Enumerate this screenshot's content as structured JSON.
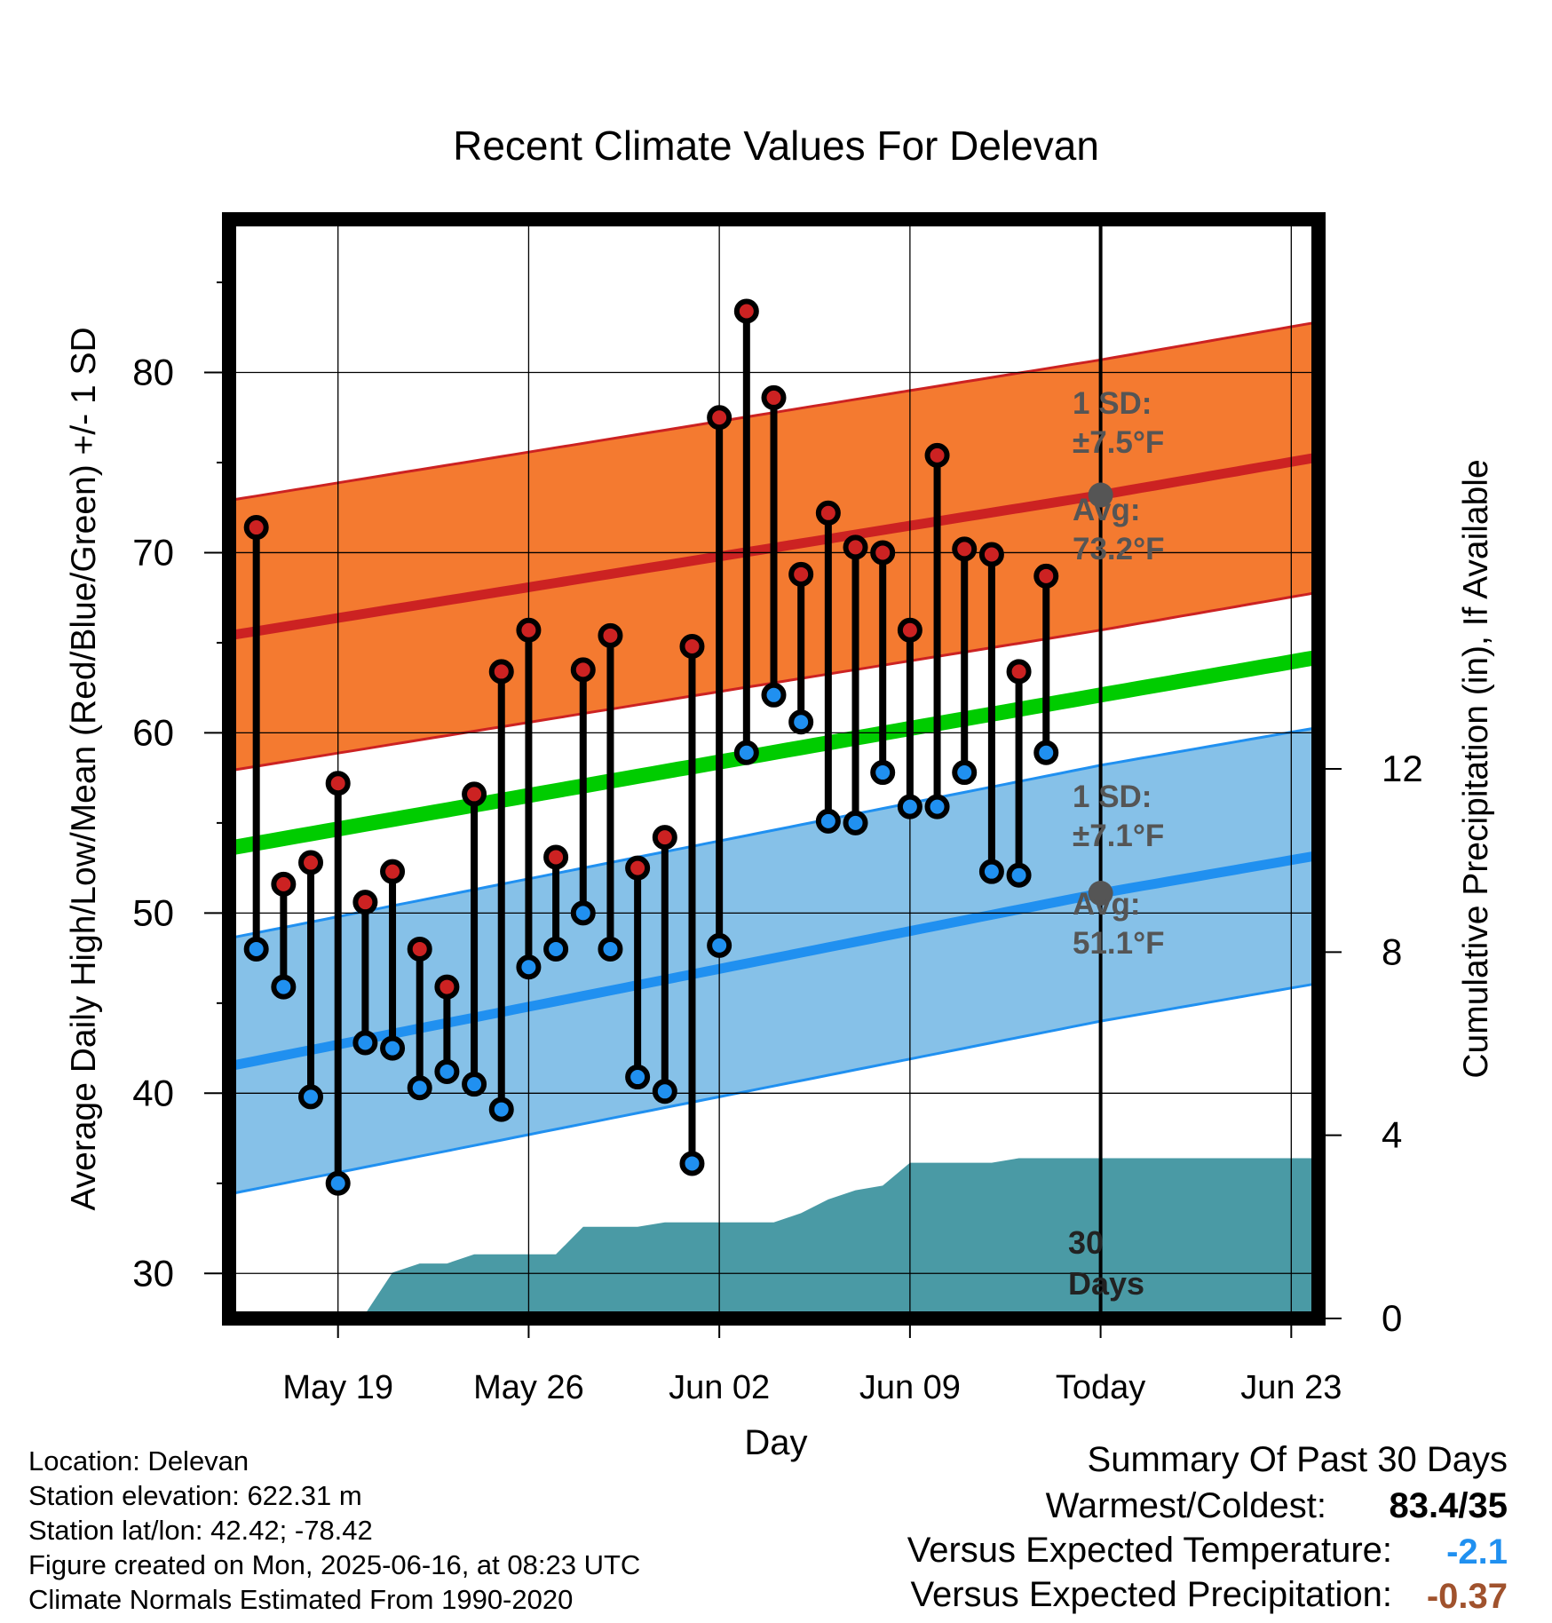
{
  "title": "Recent Climate Values For Delevan",
  "chart_data": {
    "type": "line",
    "title": "Recent Climate Values For Delevan",
    "xlabel": "Day",
    "ylabel": "Average Daily High/Low/Mean (Red/Blue/Green) +/- 1 SD",
    "y2label": "Cumulative Precipitation (in), If Available",
    "x_ticks": [
      "May 19",
      "May 26",
      "Jun 02",
      "Jun 09",
      "Today",
      "Jun 23"
    ],
    "y_ticks": [
      "30",
      "40",
      "50",
      "60",
      "70",
      "80"
    ],
    "y2_ticks": [
      "0",
      "4",
      "8",
      "12"
    ],
    "ylim": [
      27.5,
      88.5
    ],
    "y2lim": [
      0,
      24
    ],
    "xlim": [
      "2025-05-15",
      "2025-06-24"
    ],
    "grid": true,
    "today": "2025-06-16",
    "days": [
      "2025-05-16",
      "2025-05-17",
      "2025-05-18",
      "2025-05-19",
      "2025-05-20",
      "2025-05-21",
      "2025-05-22",
      "2025-05-23",
      "2025-05-24",
      "2025-05-25",
      "2025-05-26",
      "2025-05-27",
      "2025-05-28",
      "2025-05-29",
      "2025-05-30",
      "2025-05-31",
      "2025-06-01",
      "2025-06-02",
      "2025-06-03",
      "2025-06-04",
      "2025-06-05",
      "2025-06-06",
      "2025-06-07",
      "2025-06-08",
      "2025-06-09",
      "2025-06-10",
      "2025-06-11",
      "2025-06-12",
      "2025-06-13",
      "2025-06-14",
      "2025-06-15"
    ],
    "series": [
      {
        "name": "High",
        "color": "#cc2222",
        "values": [
          71.4,
          51.6,
          52.8,
          57.2,
          50.6,
          52.3,
          48.0,
          45.9,
          56.6,
          63.4,
          65.7,
          53.1,
          63.5,
          65.4,
          52.5,
          54.2,
          64.8,
          77.5,
          83.4,
          78.6,
          68.8,
          72.2,
          70.3,
          70.0,
          65.7,
          75.4,
          70.2,
          69.9,
          63.4,
          68.7,
          null
        ]
      },
      {
        "name": "Low",
        "color": "#2090f0",
        "values": [
          48.0,
          45.9,
          39.8,
          35.0,
          42.8,
          42.5,
          40.3,
          41.2,
          40.5,
          39.1,
          47.0,
          48.0,
          50.0,
          48.0,
          40.9,
          40.1,
          36.1,
          48.2,
          58.9,
          62.1,
          60.6,
          55.1,
          55.0,
          57.8,
          55.9,
          55.9,
          57.8,
          52.3,
          52.1,
          58.9,
          null
        ]
      }
    ],
    "normals": {
      "dates": [
        "2025-05-15",
        "2025-06-16",
        "2025-06-24"
      ],
      "high_avg": [
        65.4,
        73.2,
        75.3
      ],
      "high_sd": 7.5,
      "low_avg": [
        41.5,
        51.1,
        53.2
      ],
      "low_sd": 7.1,
      "mean_avg": [
        53.6,
        62.1,
        64.2
      ],
      "high_color": "#cc2222",
      "high_band_color": "#f47a30",
      "low_color": "#2090f0",
      "low_band_color": "#86c1e8",
      "mean_color": "#00cc00"
    },
    "precipitation": {
      "color": "#4a9aa5",
      "dates": [
        "2025-05-15",
        "2025-05-17",
        "2025-05-18",
        "2025-05-19",
        "2025-05-20",
        "2025-05-21",
        "2025-05-22",
        "2025-05-23",
        "2025-05-24",
        "2025-05-25",
        "2025-05-26",
        "2025-05-27",
        "2025-05-28",
        "2025-05-29",
        "2025-05-30",
        "2025-05-31",
        "2025-06-01",
        "2025-06-02",
        "2025-06-03",
        "2025-06-04",
        "2025-06-05",
        "2025-06-06",
        "2025-06-07",
        "2025-06-08",
        "2025-06-09",
        "2025-06-10",
        "2025-06-11",
        "2025-06-12",
        "2025-06-13",
        "2025-06-14",
        "2025-06-15",
        "2025-06-16",
        "2025-06-24"
      ],
      "values": [
        0.0,
        0.0,
        0.1,
        0.1,
        0.1,
        1.0,
        1.2,
        1.2,
        1.4,
        1.4,
        1.4,
        1.4,
        2.0,
        2.0,
        2.0,
        2.1,
        2.1,
        2.1,
        2.1,
        2.1,
        2.3,
        2.6,
        2.8,
        2.9,
        3.4,
        3.4,
        3.4,
        3.4,
        3.5,
        3.5,
        3.5,
        3.5,
        3.5
      ]
    },
    "annotations": {
      "high_sd_line1": "1 SD:",
      "high_sd_line2": "±7.5°F",
      "high_avg_line1": "Avg:",
      "high_avg_line2": "73.2°F",
      "low_sd_line1": "1 SD:",
      "low_sd_line2": "±7.1°F",
      "low_avg_line1": "Avg:",
      "low_avg_line2": "51.1°F",
      "days_line1": "30",
      "days_line2": "Days"
    }
  },
  "footer": {
    "location": "Location: Delevan",
    "elevation": "Station elevation: 622.31 m",
    "latlon": "Station lat/lon: 42.42; -78.42",
    "created": "Figure created on Mon, 2025-06-16, at 08:23 UTC",
    "normals": "Climate Normals Estimated From 1990-2020"
  },
  "summary": {
    "title": "Summary Of Past 30 Days",
    "warmest_label": "Warmest/Coldest:",
    "warmest_value": "83.4/35",
    "temp_label": "Versus Expected Temperature:",
    "temp_value": "-2.1",
    "temp_color": "#2090f0",
    "precip_label": "Versus Expected Precipitation:",
    "precip_value": "-0.37",
    "precip_color": "#a0522d"
  }
}
